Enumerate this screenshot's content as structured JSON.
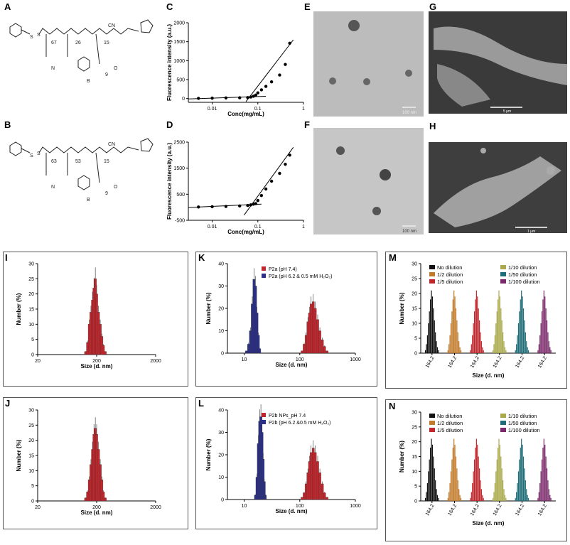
{
  "panel_labels": {
    "A": "A",
    "B": "B",
    "C": "C",
    "D": "D",
    "E": "E",
    "F": "F",
    "G": "G",
    "H": "H",
    "I": "I",
    "J": "J",
    "K": "K",
    "L": "L",
    "M": "M",
    "N": "N"
  },
  "chem": {
    "A": {
      "n1": "67",
      "n2": "26",
      "n3": "15",
      "cn": "CN",
      "s": "S",
      "b": "B",
      "o": "O",
      "n": "N",
      "sub": "9"
    },
    "B": {
      "n1": "63",
      "n2": "53",
      "n3": "15",
      "cn": "CN",
      "s": "S",
      "b": "B",
      "o": "O",
      "n": "N",
      "sub": "9"
    }
  },
  "micrographs": {
    "E": {
      "scale": "100 nm",
      "bg": "#b9b9b9"
    },
    "F": {
      "scale": "100 nm",
      "bg": "#c4c4c4"
    },
    "G": {
      "scale": "5 μm",
      "bg": "#3a3a3a"
    },
    "H": {
      "scale": "1 μm",
      "bg": "#3e3e3e"
    }
  },
  "chart_data": [
    {
      "id": "C",
      "type": "scatter",
      "xlabel": "Conc(mg/mL)",
      "ylabel": "Fluorescence intensity (a.u.)",
      "xscale": "log",
      "xlim": [
        0.003,
        1
      ],
      "ylim": [
        -100,
        2000
      ],
      "yticks": [
        "0",
        "500",
        "1000",
        "1500",
        "2000"
      ],
      "xticks": [
        "0.01",
        "0.1",
        "1"
      ],
      "x": [
        0.005,
        0.01,
        0.02,
        0.04,
        0.06,
        0.07,
        0.08,
        0.09,
        0.1,
        0.12,
        0.15,
        0.2,
        0.3,
        0.4,
        0.5
      ],
      "y": [
        5,
        10,
        15,
        20,
        25,
        40,
        60,
        90,
        150,
        230,
        320,
        440,
        620,
        900,
        1460
      ],
      "fit_lines": [
        {
          "x": [
            0.003,
            0.15
          ],
          "y": [
            -10,
            60
          ]
        },
        {
          "x": [
            0.055,
            0.6
          ],
          "y": [
            -80,
            1550
          ]
        }
      ]
    },
    {
      "id": "D",
      "type": "scatter",
      "xlabel": "Conc(mg/mL)",
      "ylabel": "Fluorescence intensity (a.u.)",
      "xscale": "log",
      "xlim": [
        0.003,
        1
      ],
      "ylim": [
        -500,
        2500
      ],
      "yticks": [
        "-500",
        "500",
        "1500",
        "2500"
      ],
      "xticks": [
        "0.01",
        "0.1",
        "1"
      ],
      "x": [
        0.005,
        0.01,
        0.02,
        0.04,
        0.06,
        0.07,
        0.08,
        0.09,
        0.1,
        0.12,
        0.15,
        0.2,
        0.3,
        0.4,
        0.5
      ],
      "y": [
        10,
        20,
        30,
        50,
        70,
        90,
        120,
        140,
        260,
        450,
        700,
        1000,
        1300,
        1650,
        2000
      ],
      "fit_lines": [
        {
          "x": [
            0.003,
            0.12
          ],
          "y": [
            -10,
            120
          ]
        },
        {
          "x": [
            0.05,
            0.6
          ],
          "y": [
            -300,
            2300
          ]
        }
      ]
    },
    {
      "id": "I",
      "type": "bar",
      "xscale": "log",
      "xlabel": "Size (d. nm)",
      "ylabel": "Number (%)",
      "xlim": [
        20,
        2000
      ],
      "ylim": [
        0,
        30
      ],
      "xticks": [
        "20",
        "200",
        "2000"
      ],
      "yticks": [
        "0",
        "5",
        "10",
        "15",
        "20",
        "25",
        "30"
      ],
      "x": [
        130,
        140,
        150,
        160,
        170,
        180,
        190,
        200,
        215,
        230,
        245,
        260,
        280
      ],
      "values": [
        1,
        4,
        10,
        14,
        18,
        22,
        25,
        20,
        14,
        10,
        6,
        3,
        1
      ]
    },
    {
      "id": "J",
      "type": "bar",
      "xscale": "log",
      "xlabel": "Size (d. nm)",
      "ylabel": "Number (%)",
      "xlim": [
        20,
        2000
      ],
      "ylim": [
        0,
        30
      ],
      "xticks": [
        "20",
        "200",
        "2000"
      ],
      "yticks": [
        "0",
        "5",
        "10",
        "15",
        "20",
        "25",
        "30"
      ],
      "x": [
        130,
        140,
        150,
        160,
        170,
        180,
        190,
        200,
        215,
        230,
        245,
        260,
        280
      ],
      "values": [
        1,
        3,
        7,
        12,
        17,
        22,
        24,
        22,
        17,
        12,
        7,
        3,
        1
      ]
    },
    {
      "id": "K",
      "type": "bar",
      "xscale": "log",
      "xlabel": "Size (d. nm)",
      "ylabel": "Number (%)",
      "xlim": [
        5,
        1000
      ],
      "ylim": [
        0,
        40
      ],
      "xticks": [
        "10",
        "100",
        "1000"
      ],
      "yticks": [
        "0",
        "10",
        "20",
        "30",
        "40"
      ],
      "legend": [
        "P2a (pH 7.4)",
        "P2a (pH 6.2 & 0.5 mM H₂O₂)"
      ],
      "series": [
        {
          "name": "P2a (pH 7.4)",
          "color": "#c0272d",
          "x": [
            110,
            120,
            130,
            140,
            150,
            160,
            175,
            190,
            210,
            230,
            255,
            280,
            310
          ],
          "values": [
            1,
            4,
            8,
            14,
            18,
            22,
            23,
            20,
            15,
            10,
            6,
            3,
            1
          ]
        },
        {
          "name": "P2a (pH 6.2 & 0.5 mM H₂O₂)",
          "color": "#2b2f86",
          "x": [
            11,
            12,
            13,
            14,
            15,
            16,
            17,
            18,
            19
          ],
          "values": [
            1,
            4,
            10,
            22,
            33,
            30,
            18,
            8,
            2
          ]
        }
      ]
    },
    {
      "id": "L",
      "type": "bar",
      "xscale": "log",
      "xlabel": "Size (d. nm)",
      "ylabel": "Number (%)",
      "xlim": [
        5,
        1000
      ],
      "ylim": [
        0,
        40
      ],
      "xticks": [
        "10",
        "100",
        "1000"
      ],
      "yticks": [
        "0",
        "10",
        "20",
        "30",
        "40"
      ],
      "legend": [
        "P2b NPs_pH 7.4",
        "P2b (pH 6.2 &0.5 mM H₂O₂)"
      ],
      "series": [
        {
          "name": "P2b NPs_pH 7.4",
          "color": "#c0272d",
          "x": [
            110,
            120,
            130,
            140,
            150,
            160,
            175,
            190,
            210,
            230,
            255,
            280,
            310
          ],
          "values": [
            1,
            3,
            7,
            12,
            17,
            21,
            23,
            21,
            17,
            12,
            7,
            3,
            1
          ]
        },
        {
          "name": "P2b (pH 6.2 &0.5 mM H₂O₂)",
          "color": "#2b2f86",
          "x": [
            16,
            17,
            18,
            19,
            20,
            21,
            22,
            23,
            24
          ],
          "values": [
            2,
            10,
            25,
            35,
            37,
            30,
            18,
            8,
            2
          ]
        }
      ]
    },
    {
      "id": "M",
      "type": "bar",
      "xlabel": "Size (d. nm)",
      "ylabel": "Number (%)",
      "ylim": [
        0,
        30
      ],
      "yticks": [
        "0",
        "5",
        "10",
        "15",
        "20",
        "25",
        "30"
      ],
      "xtick_label": "164.2",
      "legend": [
        "No dilution",
        "1/2 dilution",
        "1/5 dilution",
        "1/10 dilution",
        "1/50 dilution",
        "1/100 dilution"
      ],
      "colors": [
        "#111111",
        "#c07a2a",
        "#c0272d",
        "#a9a84a",
        "#1f6d78",
        "#7a2a6a"
      ],
      "group_values": [
        1,
        3,
        6,
        10,
        14,
        18,
        21,
        19,
        15,
        11,
        7,
        4,
        2,
        1
      ]
    },
    {
      "id": "N",
      "type": "bar",
      "xlabel": "Size (d. nm)",
      "ylabel": "Number (%)",
      "ylim": [
        0,
        30
      ],
      "yticks": [
        "0",
        "5",
        "10",
        "15",
        "20",
        "25",
        "30"
      ],
      "xtick_label": "164.2",
      "legend": [
        "No dilution",
        "1/2 dilution",
        "1/5 dilution",
        "1/10 dilution",
        "1/50 dilution",
        "1/100 dilution"
      ],
      "colors": [
        "#111111",
        "#c07a2a",
        "#c0272d",
        "#a9a84a",
        "#1f6d78",
        "#7a2a6a"
      ],
      "group_values": [
        1,
        3,
        6,
        10,
        14,
        18,
        21,
        19,
        15,
        11,
        7,
        4,
        2,
        1
      ]
    }
  ]
}
